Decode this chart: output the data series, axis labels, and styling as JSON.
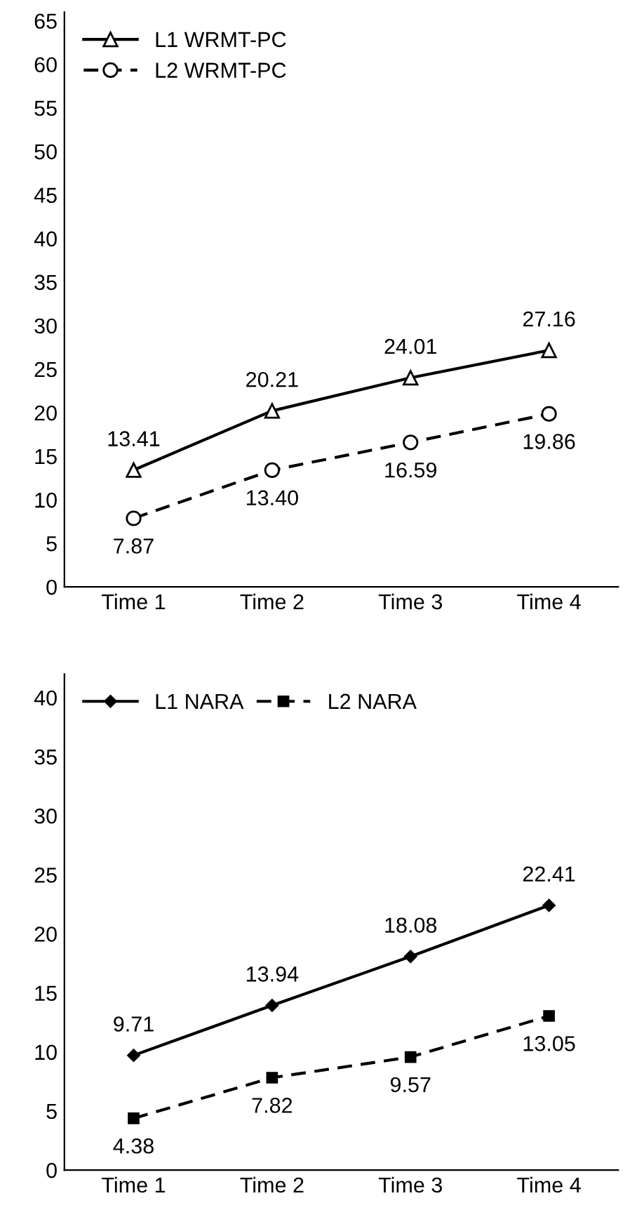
{
  "chart_data": [
    {
      "type": "line",
      "categories": [
        "Time 1",
        "Time 2",
        "Time 3",
        "Time 4"
      ],
      "series": [
        {
          "name": "L1 WRMT-PC",
          "color": "#000000",
          "values": [
            13.41,
            20.21,
            24.01,
            27.16
          ],
          "value_labels": [
            "13.41",
            "20.21",
            "24.01",
            "27.16"
          ],
          "marker": "triangle",
          "line_style": "solid"
        },
        {
          "name": "L2 WRMT-PC",
          "color": "#000000",
          "values": [
            7.87,
            13.4,
            16.59,
            19.86
          ],
          "value_labels": [
            "7.87",
            "13.40",
            "16.59",
            "19.86"
          ],
          "marker": "circle",
          "line_style": "dashed"
        }
      ],
      "ylim": [
        0,
        66
      ],
      "yticks": [
        0,
        5,
        10,
        15,
        20,
        25,
        30,
        35,
        40,
        45,
        50,
        55,
        60,
        65
      ],
      "grid": false,
      "legend": "top left"
    },
    {
      "type": "line",
      "categories": [
        "Time 1",
        "Time 2",
        "Time 3",
        "Time 4"
      ],
      "series": [
        {
          "name": "L1 NARA",
          "color": "#000000",
          "values": [
            9.71,
            13.94,
            18.08,
            22.41
          ],
          "marker": "diamond",
          "line_style": "solid"
        },
        {
          "name": "L2 NARA",
          "color": "#000000",
          "values": [
            4.38,
            7.82,
            9.57,
            13.05
          ],
          "marker": "square",
          "line_style": "dashed"
        }
      ],
      "ylim": [
        0,
        42
      ],
      "yticks": [
        0,
        5,
        10,
        15,
        20,
        25,
        30,
        35,
        40
      ],
      "data_labels": true,
      "grid": false,
      "legend": "top left"
    }
  ]
}
